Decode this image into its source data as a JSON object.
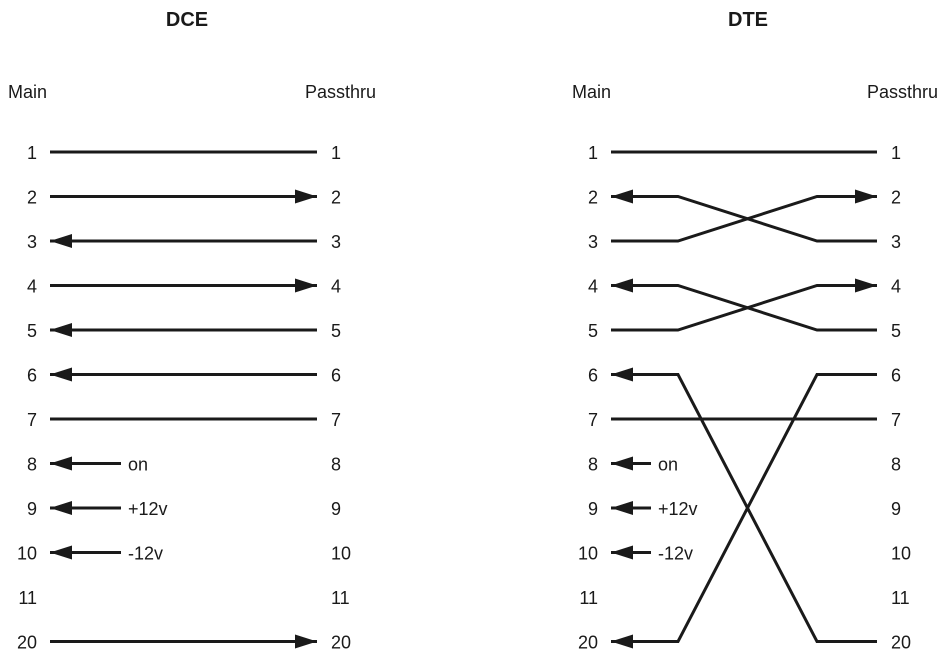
{
  "colors": {
    "line": "#1a1a1a",
    "background": "#ffffff"
  },
  "panels": [
    {
      "id": "dce",
      "title": "DCE",
      "left_header": "Main",
      "right_header": "Passthru",
      "pins": [
        "1",
        "2",
        "3",
        "4",
        "5",
        "6",
        "7",
        "8",
        "9",
        "10",
        "11",
        "20"
      ],
      "connections": [
        {
          "from": "1",
          "to": "1",
          "arrow": "none"
        },
        {
          "from": "2",
          "to": "2",
          "arrow": "right"
        },
        {
          "from": "3",
          "to": "3",
          "arrow": "left"
        },
        {
          "from": "4",
          "to": "4",
          "arrow": "right"
        },
        {
          "from": "5",
          "to": "5",
          "arrow": "left"
        },
        {
          "from": "6",
          "to": "6",
          "arrow": "left"
        },
        {
          "from": "7",
          "to": "7",
          "arrow": "none"
        },
        {
          "from": "20",
          "to": "20",
          "arrow": "right"
        }
      ],
      "signals": [
        {
          "pin": "8",
          "label": "on"
        },
        {
          "pin": "9",
          "label": "+12v"
        },
        {
          "pin": "10",
          "label": "-12v"
        }
      ]
    },
    {
      "id": "dte",
      "title": "DTE",
      "left_header": "Main",
      "right_header": "Passthru",
      "pins": [
        "1",
        "2",
        "3",
        "4",
        "5",
        "6",
        "7",
        "8",
        "9",
        "10",
        "11",
        "20"
      ],
      "connections": [
        {
          "from": "1",
          "to": "1",
          "arrow": "none"
        },
        {
          "from": "2",
          "to": "3",
          "arrow": "left"
        },
        {
          "from": "3",
          "to": "2",
          "arrow": "right"
        },
        {
          "from": "4",
          "to": "5",
          "arrow": "left"
        },
        {
          "from": "5",
          "to": "4",
          "arrow": "right"
        },
        {
          "from": "6",
          "to": "20",
          "arrow": "left"
        },
        {
          "from": "7",
          "to": "7",
          "arrow": "none"
        },
        {
          "from": "20",
          "to": "6",
          "arrow": "left"
        }
      ],
      "signals": [
        {
          "pin": "8",
          "label": "on"
        },
        {
          "pin": "9",
          "label": "+12v"
        },
        {
          "pin": "10",
          "label": "-12v"
        }
      ]
    }
  ]
}
